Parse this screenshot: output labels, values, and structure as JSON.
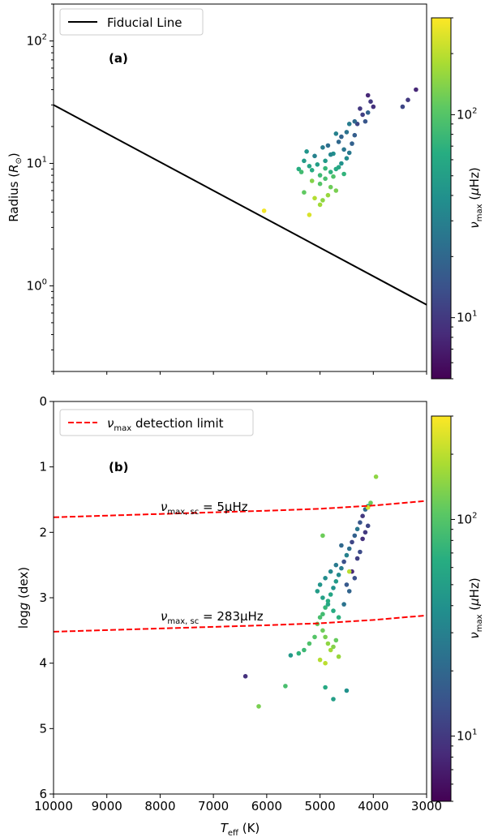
{
  "chart_data": [
    {
      "type": "scatter",
      "panel_label": "(a)",
      "ylabel": "Radius (R⊙)",
      "xlim": [
        10000,
        3000
      ],
      "ylim": [
        0.2,
        200
      ],
      "yscale": "log",
      "y_ticks": [
        {
          "value": 100,
          "base": "10",
          "exp": "2"
        },
        {
          "value": 10,
          "base": "10",
          "exp": "1"
        },
        {
          "value": 1,
          "base": "10",
          "exp": "0"
        }
      ],
      "legend": {
        "position": "top-left",
        "entries": [
          {
            "label": "Fiducial Line",
            "color": "#000000",
            "style": "solid"
          }
        ]
      },
      "lines": [
        {
          "name": "Fiducial Line",
          "points": [
            [
              10000,
              30
            ],
            [
              3000,
              0.7
            ]
          ],
          "color": "#000000",
          "style": "solid"
        }
      ],
      "colorbar": {
        "label": "νmax (μHz)",
        "range": [
          5,
          300
        ],
        "scale": "log",
        "ticks": [
          {
            "value": 10,
            "base": "10",
            "exp": "1"
          },
          {
            "value": 100,
            "base": "10",
            "exp": "2"
          }
        ]
      },
      "points": [
        [
          3200,
          40,
          8
        ],
        [
          3350,
          33,
          10
        ],
        [
          3450,
          29,
          12
        ],
        [
          4100,
          36,
          8
        ],
        [
          4050,
          32,
          10
        ],
        [
          4000,
          29,
          9
        ],
        [
          4200,
          25,
          11
        ],
        [
          4150,
          22,
          15
        ],
        [
          4300,
          21,
          12
        ],
        [
          4350,
          22,
          20
        ],
        [
          4450,
          21,
          28
        ],
        [
          4250,
          28,
          10
        ],
        [
          4100,
          26,
          18
        ],
        [
          6050,
          4.1,
          280
        ],
        [
          5200,
          3.8,
          240
        ],
        [
          5000,
          4.6,
          170
        ],
        [
          4950,
          5.0,
          150
        ],
        [
          4850,
          5.5,
          160
        ],
        [
          4700,
          6.0,
          130
        ],
        [
          5300,
          5.8,
          110
        ],
        [
          5100,
          5.2,
          190
        ],
        [
          4800,
          6.4,
          120
        ],
        [
          5000,
          6.8,
          100
        ],
        [
          4900,
          7.5,
          90
        ],
        [
          5150,
          7.2,
          140
        ],
        [
          5000,
          8.0,
          80
        ],
        [
          4800,
          8.5,
          70
        ],
        [
          4700,
          9.0,
          60
        ],
        [
          5200,
          9.5,
          55
        ],
        [
          5400,
          9.0,
          65
        ],
        [
          4600,
          10.0,
          40
        ],
        [
          4500,
          11.0,
          35
        ],
        [
          4900,
          10.5,
          45
        ],
        [
          5100,
          11.5,
          30
        ],
        [
          4750,
          12.0,
          38
        ],
        [
          4550,
          13.0,
          25
        ],
        [
          4950,
          13.5,
          28
        ],
        [
          5250,
          12.5,
          42
        ],
        [
          4850,
          14.0,
          22
        ],
        [
          4650,
          15.0,
          20
        ],
        [
          4400,
          14.5,
          18
        ],
        [
          5050,
          9.8,
          50
        ],
        [
          5300,
          10.5,
          48
        ],
        [
          4800,
          11.8,
          33
        ],
        [
          4600,
          16.5,
          19
        ],
        [
          4500,
          18.0,
          24
        ],
        [
          4350,
          17.0,
          17
        ],
        [
          4700,
          17.5,
          30
        ],
        [
          4450,
          12.2,
          26
        ],
        [
          5150,
          8.8,
          62
        ],
        [
          4650,
          9.3,
          58
        ],
        [
          4900,
          9.1,
          75
        ],
        [
          5350,
          8.5,
          85
        ],
        [
          4550,
          8.2,
          72
        ],
        [
          4750,
          7.8,
          95
        ]
      ]
    },
    {
      "type": "scatter",
      "panel_label": "(b)",
      "ylabel": "log g (dex)",
      "xlabel": "Teff (K)",
      "xlim": [
        10000,
        3000
      ],
      "ylim": [
        6,
        0
      ],
      "x_ticks": [
        10000,
        9000,
        8000,
        7000,
        6000,
        5000,
        4000,
        3000
      ],
      "y_ticks": [
        0,
        1,
        2,
        3,
        4,
        5,
        6
      ],
      "legend": {
        "position": "top-left",
        "entries": [
          {
            "label": "νmax detection limit",
            "color": "#ff0000",
            "style": "dashed"
          }
        ]
      },
      "lines": [
        {
          "name": "ν_max,sc = 5μHz",
          "points": [
            [
              10000,
              1.77
            ],
            [
              8000,
              1.72
            ],
            [
              6000,
              1.67
            ],
            [
              5000,
              1.64
            ],
            [
              4000,
              1.59
            ],
            [
              3000,
              1.52
            ]
          ],
          "color": "#ff0000",
          "style": "dashed"
        },
        {
          "name": "ν_max,sc = 283μHz",
          "points": [
            [
              10000,
              3.52
            ],
            [
              8000,
              3.47
            ],
            [
              6000,
              3.42
            ],
            [
              5000,
              3.39
            ],
            [
              4000,
              3.34
            ],
            [
              3000,
              3.27
            ]
          ],
          "color": "#ff0000",
          "style": "dashed"
        }
      ],
      "annotations": [
        {
          "base": "ν",
          "sub": "max, sc",
          "rest": " = 5μHz"
        },
        {
          "base": "ν",
          "sub": "max, sc",
          "rest": " = 283μHz"
        }
      ],
      "colorbar": {
        "label": "νmax (μHz)",
        "range": [
          5,
          300
        ],
        "scale": "log",
        "ticks": [
          {
            "value": 10,
            "base": "10",
            "exp": "1"
          },
          {
            "value": 100,
            "base": "10",
            "exp": "2"
          }
        ]
      },
      "points": [
        [
          3950,
          1.15,
          150
        ],
        [
          4050,
          1.55,
          120
        ],
        [
          4100,
          1.6,
          60
        ],
        [
          4150,
          1.65,
          20
        ],
        [
          4200,
          1.75,
          10
        ],
        [
          4250,
          1.85,
          15
        ],
        [
          4300,
          1.95,
          25
        ],
        [
          4350,
          2.05,
          18
        ],
        [
          4400,
          2.15,
          12
        ],
        [
          4450,
          2.25,
          22
        ],
        [
          4500,
          2.35,
          30
        ],
        [
          4550,
          2.45,
          14
        ],
        [
          4600,
          2.55,
          28
        ],
        [
          4650,
          2.65,
          35
        ],
        [
          4700,
          2.75,
          45
        ],
        [
          4750,
          2.85,
          40
        ],
        [
          4800,
          2.95,
          55
        ],
        [
          4850,
          3.05,
          65
        ],
        [
          4900,
          3.15,
          75
        ],
        [
          4950,
          3.25,
          85
        ],
        [
          4200,
          2.1,
          9
        ],
        [
          4300,
          2.4,
          11
        ],
        [
          4400,
          2.6,
          8
        ],
        [
          4250,
          2.3,
          13
        ],
        [
          4500,
          2.8,
          16
        ],
        [
          4600,
          2.2,
          20
        ],
        [
          4700,
          2.5,
          27
        ],
        [
          4800,
          2.6,
          33
        ],
        [
          4900,
          2.7,
          37
        ],
        [
          5000,
          2.8,
          42
        ],
        [
          5050,
          2.9,
          48
        ],
        [
          4950,
          3.0,
          52
        ],
        [
          4850,
          3.1,
          58
        ],
        [
          4750,
          3.2,
          62
        ],
        [
          4650,
          3.3,
          68
        ],
        [
          4550,
          3.1,
          24
        ],
        [
          4450,
          2.9,
          19
        ],
        [
          4350,
          2.7,
          14
        ],
        [
          4150,
          2.0,
          10
        ],
        [
          4100,
          1.9,
          12
        ],
        [
          5000,
          3.3,
          90
        ],
        [
          5050,
          3.4,
          110
        ],
        [
          4950,
          3.5,
          120
        ],
        [
          4900,
          3.6,
          130
        ],
        [
          4850,
          3.7,
          150
        ],
        [
          4800,
          3.8,
          170
        ],
        [
          5100,
          3.6,
          100
        ],
        [
          5200,
          3.7,
          95
        ],
        [
          5300,
          3.8,
          80
        ],
        [
          5400,
          3.85,
          70
        ],
        [
          4750,
          3.75,
          140
        ],
        [
          4700,
          3.65,
          115
        ],
        [
          4650,
          3.9,
          160
        ],
        [
          5000,
          3.95,
          190
        ],
        [
          4900,
          4.0,
          200
        ],
        [
          6400,
          4.2,
          9
        ],
        [
          6150,
          4.66,
          130
        ],
        [
          5650,
          4.35,
          90
        ],
        [
          4900,
          4.37,
          60
        ],
        [
          4750,
          4.55,
          50
        ],
        [
          4500,
          4.42,
          40
        ],
        [
          5550,
          3.88,
          45
        ],
        [
          4450,
          2.6,
          200
        ],
        [
          4950,
          2.05,
          120
        ],
        [
          4100,
          1.62,
          230
        ]
      ]
    }
  ]
}
